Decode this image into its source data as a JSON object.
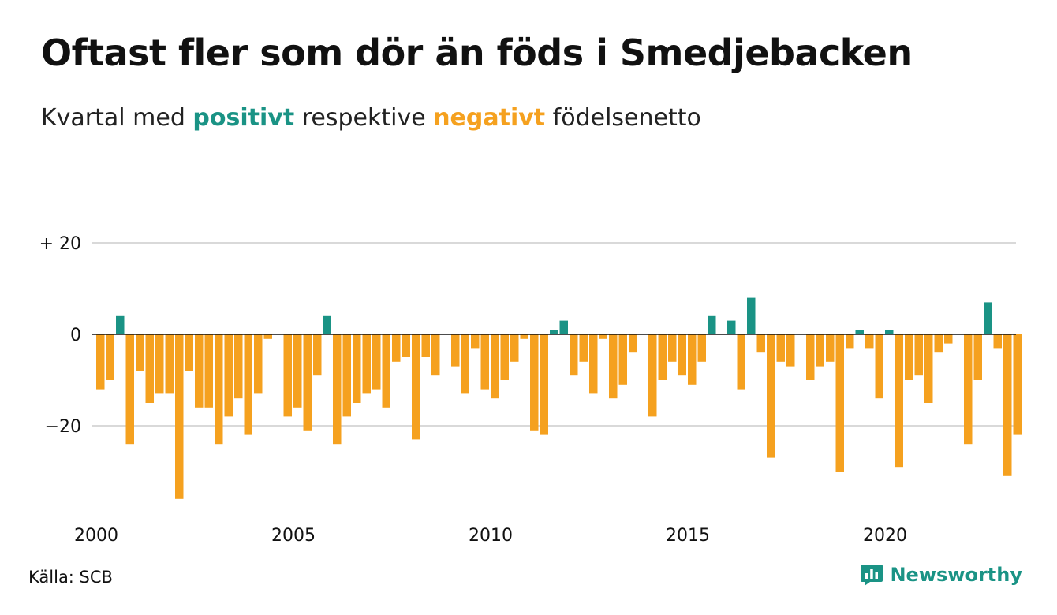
{
  "header": {
    "title": "Oftast fler som dör än föds i Smedjebacken",
    "subtitle_before": "Kvartal med ",
    "subtitle_pos": "positivt",
    "subtitle_mid": " respektive ",
    "subtitle_neg": "negativt",
    "subtitle_after": " födelsenetto"
  },
  "footer": {
    "source": "Källa: SCB",
    "brand": "Newsworthy"
  },
  "colors": {
    "positive": "#1a9385",
    "negative": "#f5a11f",
    "grid": "#d9d9d9",
    "zero": "#111111"
  },
  "icons": {
    "brand": "newsworthy-logo-icon"
  },
  "chart_data": {
    "type": "bar",
    "ylim": [
      -38,
      22
    ],
    "y_ticks": [
      {
        "value": 20,
        "label": "+ 20"
      },
      {
        "value": 0,
        "label": "0"
      },
      {
        "value": -20,
        "label": "−20"
      }
    ],
    "x_ticks": [
      {
        "value": 2000,
        "label": "2000"
      },
      {
        "value": 2005,
        "label": "2005"
      },
      {
        "value": 2010,
        "label": "2010"
      },
      {
        "value": 2015,
        "label": "2015"
      },
      {
        "value": 2020,
        "label": "2020"
      }
    ],
    "start_year": 2000,
    "grid": true,
    "values": [
      -12,
      -10,
      4,
      -24,
      -8,
      -15,
      -13,
      -13,
      -36,
      -8,
      -16,
      -16,
      -24,
      -18,
      -14,
      -22,
      -13,
      -1,
      0,
      -18,
      -16,
      -21,
      -9,
      4,
      -24,
      -18,
      -15,
      -13,
      -12,
      -16,
      -6,
      -5,
      -23,
      -5,
      -9,
      0,
      -7,
      -13,
      -3,
      -12,
      -14,
      -10,
      -6,
      -1,
      -21,
      -22,
      1,
      3,
      -9,
      -6,
      -13,
      -1,
      -14,
      -11,
      -4,
      0,
      -18,
      -10,
      -6,
      -9,
      -11,
      -6,
      4,
      0,
      3,
      -12,
      8,
      -4,
      -27,
      -6,
      -7,
      0,
      -10,
      -7,
      -6,
      -30,
      -3,
      1,
      -3,
      -14,
      1,
      -29,
      -10,
      -9,
      -15,
      -4,
      -2,
      0,
      -24,
      -10,
      7,
      -3,
      -31,
      -22
    ]
  }
}
